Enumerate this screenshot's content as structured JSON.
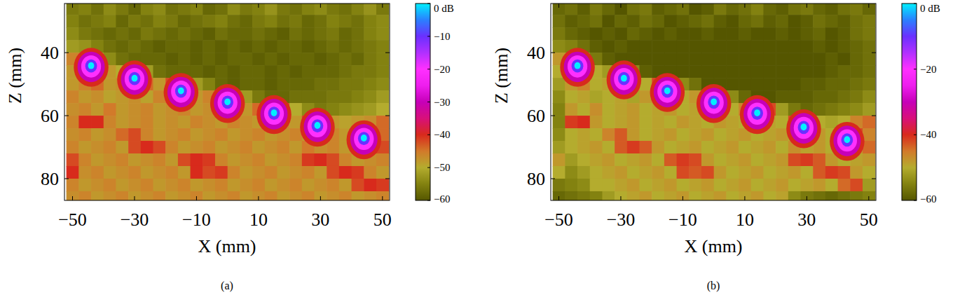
{
  "chart_data": [
    {
      "type": "heatmap",
      "caption": "(a)",
      "x_label": "X (mm)",
      "y_label": "Z (mm)",
      "xlim": [
        -52.6,
        52.3
      ],
      "ylim": [
        86.9,
        24.4
      ],
      "xticks": [
        {
          "value": -50,
          "label": "−50"
        },
        {
          "value": -30,
          "label": "−30"
        },
        {
          "value": -10,
          "label": "−10"
        },
        10,
        30,
        50
      ],
      "yticks": [
        40,
        60,
        80
      ],
      "x": [
        -50,
        -46,
        -42,
        -38,
        -34,
        -30,
        -26,
        -22,
        -18,
        -14,
        -10,
        -6,
        -2,
        2,
        6,
        10,
        14,
        18,
        22,
        26,
        30,
        34,
        38,
        42,
        46,
        50
      ],
      "y": [
        26,
        30,
        34,
        38,
        42,
        46,
        50,
        54,
        58,
        62,
        66,
        70,
        74,
        78,
        82,
        86
      ],
      "cells": [
        [
          -56,
          -55,
          -57,
          -54,
          -56,
          -58,
          -55,
          -54,
          -57,
          -56,
          -55,
          -58,
          -57,
          -54,
          -56,
          -55,
          -53,
          -56,
          -57,
          -55,
          -54,
          -56,
          -57,
          -55,
          -53,
          -56
        ],
        [
          -55,
          -57,
          -56,
          -55,
          -58,
          -56,
          -57,
          -55,
          -56,
          -58,
          -57,
          -56,
          -55,
          -57,
          -58,
          -56,
          -55,
          -57,
          -56,
          -58,
          -57,
          -55,
          -56,
          -57,
          -55,
          -54
        ],
        [
          -54,
          -56,
          -57,
          -58,
          -57,
          -58,
          -56,
          -57,
          -58,
          -57,
          -58,
          -59,
          -57,
          -58,
          -58,
          -57,
          -58,
          -59,
          -57,
          -58,
          -57,
          -56,
          -58,
          -57,
          -55,
          -54
        ],
        [
          -52,
          -53,
          -55,
          -57,
          -58,
          -57,
          -58,
          -59,
          -58,
          -58,
          -59,
          -58,
          -59,
          -58,
          -59,
          -58,
          -59,
          -58,
          -58,
          -59,
          -58,
          -57,
          -58,
          -57,
          -56,
          -55
        ],
        [
          -46,
          -48,
          -50,
          -54,
          -57,
          -58,
          -58,
          -58,
          -59,
          -58,
          -59,
          -58,
          -59,
          -58,
          -58,
          -59,
          -58,
          -59,
          -58,
          -58,
          -59,
          -58,
          -57,
          -58,
          -56,
          -55
        ],
        [
          -48,
          -40,
          -40,
          -48,
          -50,
          -42,
          -52,
          -57,
          -58,
          -58,
          -58,
          -59,
          -58,
          -59,
          -58,
          -58,
          -59,
          -58,
          -59,
          -58,
          -58,
          -58,
          -57,
          -56,
          -56,
          -55
        ],
        [
          -48,
          -46,
          -44,
          -48,
          -47,
          -42,
          -44,
          -48,
          -42,
          -42,
          -52,
          -55,
          -58,
          -59,
          -58,
          -58,
          -59,
          -58,
          -58,
          -58,
          -57,
          -57,
          -56,
          -56,
          -55,
          -54
        ],
        [
          -46,
          -48,
          -47,
          -49,
          -48,
          -47,
          -49,
          -46,
          -44,
          -42,
          -48,
          -46,
          -42,
          -42,
          -52,
          -56,
          -58,
          -58,
          -57,
          -57,
          -57,
          -56,
          -56,
          -55,
          -54,
          -52
        ],
        [
          -47,
          -46,
          -48,
          -45,
          -48,
          -47,
          -46,
          -48,
          -47,
          -46,
          -48,
          -47,
          -46,
          -45,
          -48,
          -44,
          -42,
          -42,
          -50,
          -54,
          -56,
          -55,
          -54,
          -53,
          -52,
          -50
        ],
        [
          -46,
          -40,
          -40,
          -46,
          -48,
          -47,
          -46,
          -48,
          -47,
          -48,
          -46,
          -47,
          -48,
          -46,
          -47,
          -48,
          -46,
          -47,
          -48,
          -42,
          -42,
          -48,
          -49,
          -48,
          -47,
          -44
        ],
        [
          -47,
          -46,
          -48,
          -47,
          -44,
          -42,
          -46,
          -48,
          -47,
          -46,
          -48,
          -47,
          -46,
          -48,
          -47,
          -46,
          -48,
          -47,
          -46,
          -48,
          -47,
          -46,
          -48,
          -42,
          -42,
          -44
        ],
        [
          -46,
          -48,
          -47,
          -46,
          -48,
          -42,
          -40,
          -42,
          -46,
          -48,
          -47,
          -46,
          -48,
          -47,
          -46,
          -48,
          -47,
          -46,
          -48,
          -45,
          -47,
          -46,
          -48,
          -47,
          -46,
          -42
        ],
        [
          -42,
          -46,
          -48,
          -47,
          -46,
          -48,
          -47,
          -46,
          -48,
          -42,
          -40,
          -41,
          -46,
          -48,
          -47,
          -46,
          -48,
          -47,
          -46,
          -41,
          -40,
          -42,
          -46,
          -48,
          -47,
          -46
        ],
        [
          -40,
          -47,
          -46,
          -48,
          -47,
          -46,
          -48,
          -47,
          -46,
          -48,
          -40,
          -42,
          -41,
          -46,
          -48,
          -47,
          -46,
          -48,
          -47,
          -46,
          -48,
          -42,
          -40,
          -41,
          -46,
          -48
        ],
        [
          -46,
          -48,
          -47,
          -46,
          -48,
          -47,
          -46,
          -48,
          -47,
          -46,
          -48,
          -47,
          -46,
          -48,
          -47,
          -46,
          -48,
          -47,
          -46,
          -48,
          -47,
          -46,
          -48,
          -42,
          -40,
          -41
        ],
        [
          -47,
          -46,
          -48,
          -47,
          -46,
          -48,
          -47,
          -46,
          -48,
          -47,
          -46,
          -48,
          -47,
          -46,
          -48,
          -47,
          -46,
          -48,
          -47,
          -46,
          -48,
          -47,
          -46,
          -48,
          -47,
          -46
        ]
      ],
      "colorbar": {
        "range": [
          -60,
          0
        ],
        "ticks": [
          {
            "value": 0,
            "label": "0 dB"
          },
          {
            "value": -10,
            "label": "−10"
          },
          {
            "value": -20,
            "label": "−20"
          },
          {
            "value": -30,
            "label": "−30"
          },
          {
            "value": -40,
            "label": "−40"
          },
          {
            "value": -50,
            "label": "−50"
          },
          {
            "value": -60,
            "label": "−60"
          }
        ]
      },
      "targets": {
        "x": [
          -44,
          -30,
          -15,
          0,
          15,
          29,
          44
        ],
        "z": [
          44,
          48,
          52,
          55.5,
          59,
          63,
          67
        ],
        "values": [
          0,
          0,
          0,
          0,
          0,
          0,
          0
        ]
      }
    },
    {
      "type": "heatmap",
      "caption": "(b)",
      "x_label": "X (mm)",
      "y_label": "Z (mm)",
      "xlim": [
        -52.6,
        52.3
      ],
      "ylim": [
        86.9,
        24.4
      ],
      "xticks": [
        {
          "value": -50,
          "label": "−50"
        },
        {
          "value": -30,
          "label": "−30"
        },
        {
          "value": -10,
          "label": "−10"
        },
        10,
        30,
        50
      ],
      "yticks": [
        40,
        60,
        80
      ],
      "x": [
        -50,
        -46,
        -42,
        -38,
        -34,
        -30,
        -26,
        -22,
        -18,
        -14,
        -10,
        -6,
        -2,
        2,
        6,
        10,
        14,
        18,
        22,
        26,
        30,
        34,
        38,
        42,
        46,
        50
      ],
      "y": [
        26,
        30,
        34,
        38,
        42,
        46,
        50,
        54,
        58,
        62,
        66,
        70,
        74,
        78,
        82,
        86
      ],
      "cells": [
        [
          -58,
          -57,
          -59,
          -56,
          -58,
          -60,
          -57,
          -56,
          -59,
          -58,
          -57,
          -60,
          -59,
          -56,
          -58,
          -57,
          -55,
          -58,
          -59,
          -57,
          -56,
          -58,
          -59,
          -57,
          -56,
          -58
        ],
        [
          -57,
          -59,
          -58,
          -57,
          -60,
          -58,
          -59,
          -57,
          -58,
          -60,
          -59,
          -58,
          -57,
          -59,
          -60,
          -58,
          -57,
          -59,
          -58,
          -60,
          -59,
          -57,
          -58,
          -59,
          -57,
          -56
        ],
        [
          -56,
          -58,
          -59,
          -60,
          -59,
          -60,
          -58,
          -59,
          -60,
          -59,
          -60,
          -60,
          -59,
          -60,
          -60,
          -59,
          -60,
          -60,
          -59,
          -60,
          -59,
          -58,
          -60,
          -59,
          -57,
          -56
        ],
        [
          -54,
          -55,
          -57,
          -59,
          -60,
          -59,
          -60,
          -60,
          -60,
          -60,
          -60,
          -60,
          -60,
          -60,
          -60,
          -60,
          -60,
          -60,
          -60,
          -60,
          -60,
          -59,
          -60,
          -59,
          -58,
          -57
        ],
        [
          -48,
          -50,
          -52,
          -56,
          -59,
          -60,
          -60,
          -60,
          -60,
          -60,
          -60,
          -60,
          -60,
          -60,
          -60,
          -60,
          -60,
          -60,
          -60,
          -60,
          -60,
          -60,
          -59,
          -60,
          -58,
          -57
        ],
        [
          -50,
          -40,
          -40,
          -50,
          -52,
          -42,
          -54,
          -59,
          -60,
          -60,
          -60,
          -60,
          -60,
          -60,
          -60,
          -60,
          -60,
          -60,
          -60,
          -60,
          -60,
          -60,
          -59,
          -58,
          -58,
          -57
        ],
        [
          -52,
          -48,
          -46,
          -50,
          -49,
          -42,
          -46,
          -50,
          -42,
          -42,
          -54,
          -57,
          -60,
          -60,
          -60,
          -60,
          -60,
          -60,
          -60,
          -60,
          -59,
          -59,
          -58,
          -58,
          -57,
          -56
        ],
        [
          -54,
          -50,
          -49,
          -51,
          -50,
          -49,
          -51,
          -48,
          -46,
          -44,
          -50,
          -48,
          -42,
          -42,
          -54,
          -58,
          -60,
          -60,
          -59,
          -59,
          -59,
          -58,
          -58,
          -57,
          -56,
          -54
        ],
        [
          -55,
          -48,
          -50,
          -47,
          -50,
          -49,
          -48,
          -50,
          -49,
          -48,
          -50,
          -49,
          -48,
          -47,
          -50,
          -46,
          -42,
          -42,
          -52,
          -56,
          -58,
          -57,
          -56,
          -55,
          -54,
          -52
        ],
        [
          -55,
          -41,
          -40,
          -48,
          -50,
          -49,
          -48,
          -50,
          -49,
          -50,
          -48,
          -49,
          -50,
          -48,
          -49,
          -50,
          -48,
          -49,
          -50,
          -42,
          -42,
          -50,
          -51,
          -50,
          -46,
          -44
        ],
        [
          -54,
          -50,
          -49,
          -50,
          -46,
          -43,
          -48,
          -50,
          -49,
          -48,
          -50,
          -49,
          -48,
          -50,
          -49,
          -48,
          -50,
          -49,
          -48,
          -50,
          -49,
          -48,
          -50,
          -42,
          -42,
          -46
        ],
        [
          -52,
          -50,
          -49,
          -48,
          -50,
          -43,
          -41,
          -43,
          -48,
          -50,
          -49,
          -48,
          -50,
          -49,
          -48,
          -50,
          -49,
          -48,
          -50,
          -47,
          -49,
          -48,
          -50,
          -49,
          -48,
          -44
        ],
        [
          -48,
          -52,
          -50,
          -49,
          -48,
          -50,
          -49,
          -48,
          -50,
          -43,
          -41,
          -42,
          -48,
          -50,
          -49,
          -48,
          -50,
          -49,
          -48,
          -42,
          -41,
          -43,
          -48,
          -50,
          -49,
          -48
        ],
        [
          -50,
          -54,
          -52,
          -50,
          -49,
          -48,
          -50,
          -49,
          -48,
          -50,
          -42,
          -43,
          -42,
          -48,
          -50,
          -49,
          -48,
          -50,
          -49,
          -48,
          -50,
          -43,
          -41,
          -42,
          -48,
          -50
        ],
        [
          -56,
          -55,
          -54,
          -50,
          -50,
          -49,
          -48,
          -50,
          -49,
          -48,
          -50,
          -49,
          -48,
          -50,
          -49,
          -48,
          -50,
          -49,
          -48,
          -50,
          -49,
          -48,
          -50,
          -44,
          -42,
          -52
        ],
        [
          -58,
          -57,
          -56,
          -55,
          -52,
          -50,
          -49,
          -48,
          -50,
          -49,
          -48,
          -50,
          -49,
          -48,
          -50,
          -49,
          -48,
          -50,
          -49,
          -54,
          -56,
          -57,
          -58,
          -57,
          -56,
          -55
        ]
      ],
      "colorbar": {
        "range": [
          -60,
          0
        ],
        "ticks": [
          {
            "value": 0,
            "label": "0 dB"
          },
          {
            "value": -20,
            "label": "−20"
          },
          {
            "value": -40,
            "label": "−40"
          },
          {
            "value": -60,
            "label": "−60"
          }
        ]
      },
      "targets": {
        "x": [
          -44,
          -29,
          -15,
          0,
          14,
          29,
          43
        ],
        "z": [
          44,
          48,
          52,
          55.5,
          59,
          63.5,
          67.5
        ],
        "values": [
          0,
          0,
          0,
          0,
          0,
          0,
          0
        ]
      }
    }
  ]
}
